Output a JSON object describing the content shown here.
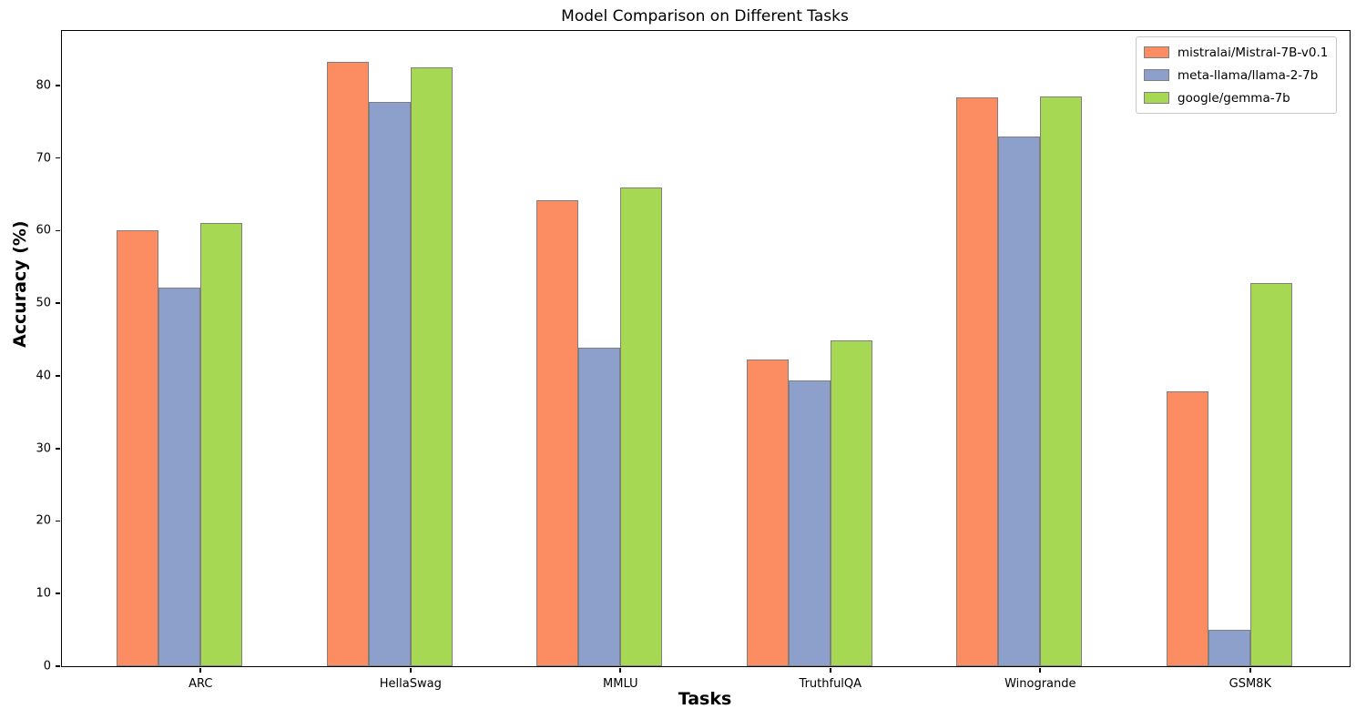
{
  "chart_data": {
    "type": "bar",
    "title": "Model Comparison on Different Tasks",
    "xlabel": "Tasks",
    "ylabel": "Accuracy (%)",
    "categories": [
      "ARC",
      "HellaSwag",
      "MMLU",
      "TruthfulQA",
      "Winogrande",
      "GSM8K"
    ],
    "series": [
      {
        "name": "mistralai/Mistral-7B-v0.1",
        "color": "#fc8d62",
        "values": [
          60.0,
          83.3,
          64.2,
          42.2,
          78.4,
          37.8
        ]
      },
      {
        "name": "meta-llama/llama-2-7b",
        "color": "#8da0cb",
        "values": [
          52.1,
          77.7,
          43.9,
          39.3,
          73.0,
          5.0
        ]
      },
      {
        "name": "google/gemma-7b",
        "color": "#a6d854",
        "values": [
          61.1,
          82.5,
          66.0,
          44.9,
          78.5,
          52.8
        ]
      }
    ],
    "bar_edge_color": "#7f7f7f",
    "ylim": [
      0,
      87.5
    ],
    "yticks": [
      0,
      10,
      20,
      30,
      40,
      50,
      60,
      70,
      80
    ],
    "grid": false,
    "legend_position": "upper right"
  }
}
